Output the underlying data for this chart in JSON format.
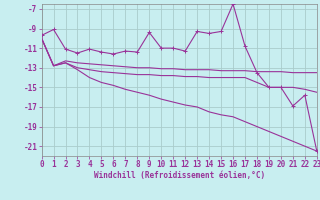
{
  "xlabel": "Windchill (Refroidissement éolien,°C)",
  "bg_color": "#c8eef0",
  "grid_color": "#aacccc",
  "line_color": "#993399",
  "xlim": [
    0,
    23
  ],
  "ylim": [
    -22,
    -6.5
  ],
  "yticks": [
    -21,
    -19,
    -17,
    -15,
    -13,
    -11,
    -9,
    -7
  ],
  "xticks": [
    0,
    1,
    2,
    3,
    4,
    5,
    6,
    7,
    8,
    9,
    10,
    11,
    12,
    13,
    14,
    15,
    16,
    17,
    18,
    19,
    20,
    21,
    22,
    23
  ],
  "line1_x": [
    0,
    1,
    2,
    3,
    4,
    5,
    6,
    7,
    8,
    9,
    10,
    11,
    12,
    13,
    14,
    15,
    16,
    17,
    18,
    19,
    20,
    21,
    22,
    23
  ],
  "line1_y": [
    -9.7,
    -9.1,
    -11.1,
    -11.5,
    -11.1,
    -11.4,
    -11.6,
    -11.3,
    -11.4,
    -9.4,
    -11.0,
    -11.0,
    -11.3,
    -9.3,
    -9.5,
    -9.3,
    -6.5,
    -10.8,
    -13.5,
    -15.0,
    -15.0,
    -16.9,
    -15.8,
    -21.5
  ],
  "line2_x": [
    0,
    1,
    2,
    3,
    4,
    5,
    6,
    7,
    8,
    9,
    10,
    11,
    12,
    13,
    14,
    15,
    16,
    17,
    18,
    19,
    20,
    21,
    22,
    23
  ],
  "line2_y": [
    -10.0,
    -12.8,
    -12.3,
    -12.5,
    -12.6,
    -12.7,
    -12.8,
    -12.9,
    -13.0,
    -13.0,
    -13.1,
    -13.1,
    -13.2,
    -13.2,
    -13.2,
    -13.3,
    -13.3,
    -13.3,
    -13.4,
    -13.4,
    -13.4,
    -13.5,
    -13.5,
    -13.5
  ],
  "line3_x": [
    0,
    1,
    2,
    3,
    4,
    5,
    6,
    7,
    8,
    9,
    10,
    11,
    12,
    13,
    14,
    15,
    16,
    17,
    18,
    19,
    20,
    21,
    22,
    23
  ],
  "line3_y": [
    -10.0,
    -12.8,
    -12.5,
    -13.0,
    -13.2,
    -13.4,
    -13.5,
    -13.6,
    -13.7,
    -13.7,
    -13.8,
    -13.8,
    -13.9,
    -13.9,
    -14.0,
    -14.0,
    -14.0,
    -14.0,
    -14.5,
    -15.0,
    -15.0,
    -15.0,
    -15.2,
    -15.5
  ],
  "line4_x": [
    0,
    1,
    2,
    3,
    4,
    5,
    6,
    7,
    8,
    9,
    10,
    11,
    12,
    13,
    14,
    15,
    16,
    17,
    18,
    19,
    20,
    21,
    22,
    23
  ],
  "line4_y": [
    -10.0,
    -12.8,
    -12.5,
    -13.2,
    -14.0,
    -14.5,
    -14.8,
    -15.2,
    -15.5,
    -15.8,
    -16.2,
    -16.5,
    -16.8,
    -17.0,
    -17.5,
    -17.8,
    -18.0,
    -18.5,
    -19.0,
    -19.5,
    -20.0,
    -20.5,
    -21.0,
    -21.5
  ],
  "tick_fontsize": 5.5,
  "xlabel_fontsize": 5.5,
  "lw": 0.8,
  "ms": 2.5
}
